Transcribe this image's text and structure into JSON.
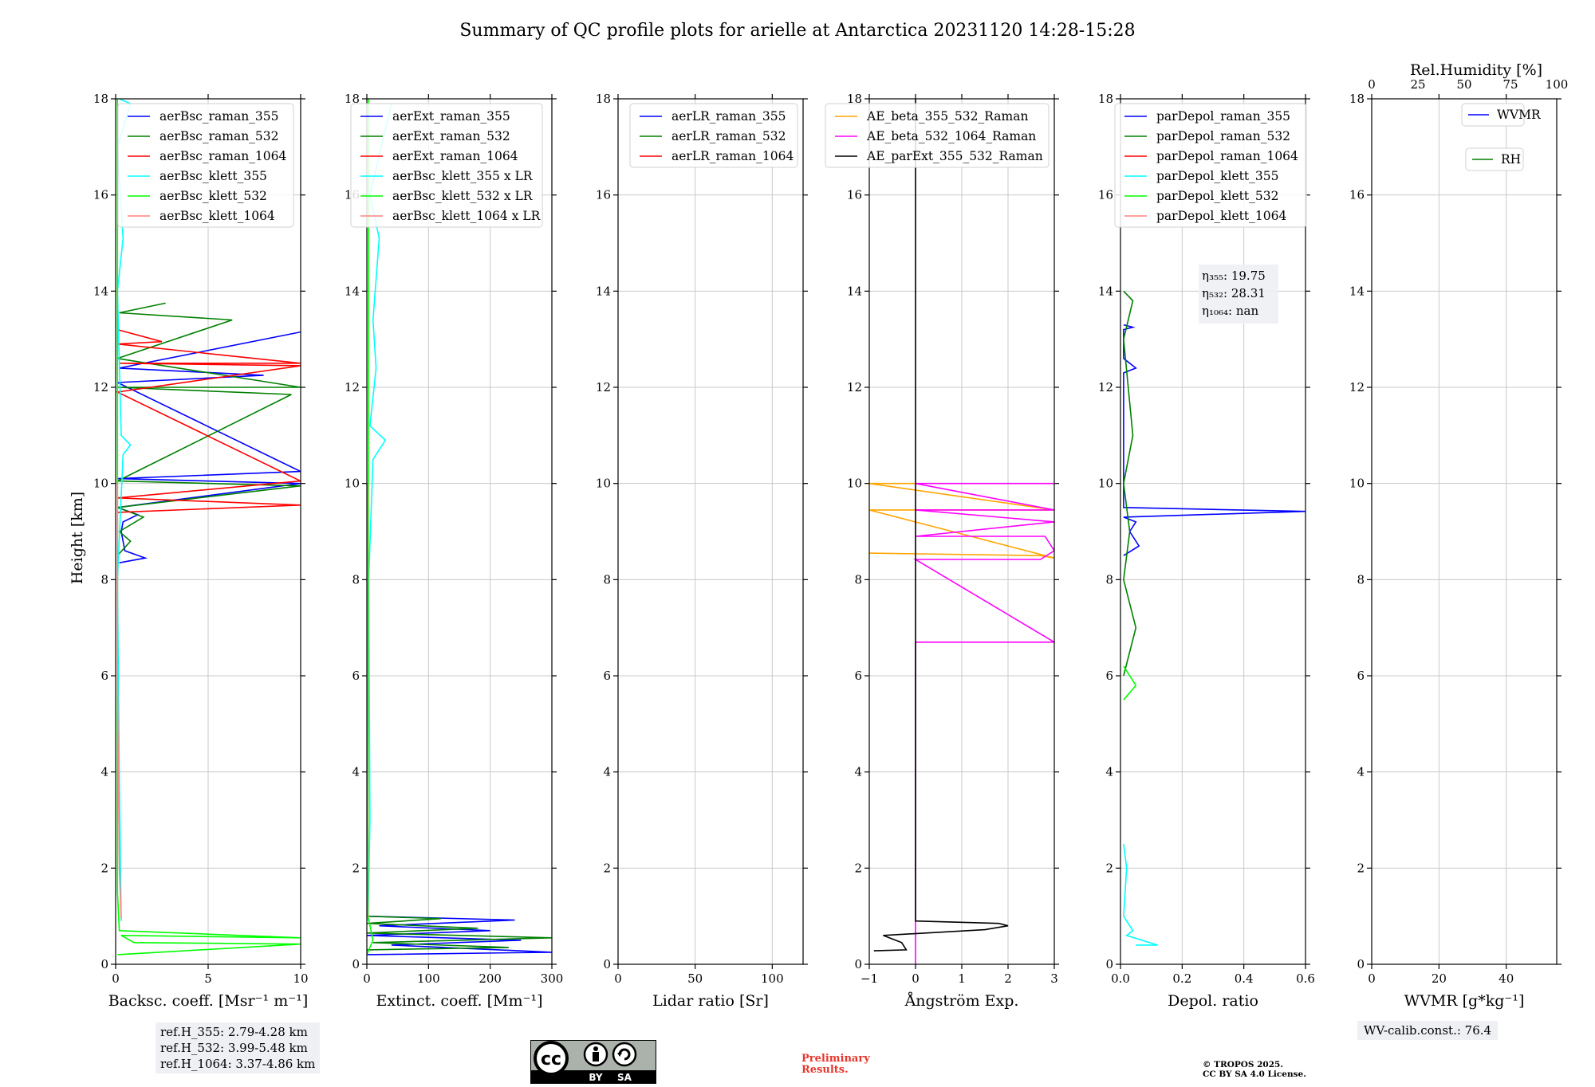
{
  "title": "Summary of QC profile plots for arielle at Antarctica 20231120 14:28-15:28",
  "ylabel": "Height [km]",
  "colors": {
    "raman_355": "#0000ff",
    "raman_532": "#008000",
    "raman_1064": "#ff0000",
    "klett_355": "#00ffff",
    "klett_532": "#00ff00",
    "klett_1064": "#ff8080",
    "ae_1": "#ffa500",
    "ae_2": "#ff00ff",
    "ae_3": "#000000",
    "wvmr": "#0000ff",
    "rh": "#008000"
  },
  "chart_data": [
    {
      "type": "line",
      "name": "backscatter",
      "xlabel": "Backsc. coeff. [Msr⁻¹ m⁻¹]",
      "xlim": [
        0,
        10
      ],
      "ylim": [
        0,
        18
      ],
      "xticks": [
        "0",
        "5",
        "10"
      ],
      "yticks": [
        "0",
        "2",
        "4",
        "6",
        "8",
        "10",
        "12",
        "14",
        "16",
        "18"
      ],
      "legend_position": "top-right",
      "series": [
        {
          "name": "aerBsc_raman_355",
          "color_key": "raman_355",
          "points": [
            [
              0.2,
              8.35
            ],
            [
              1.6,
              8.45
            ],
            [
              0.5,
              8.6
            ],
            [
              0.3,
              9.0
            ],
            [
              0.4,
              9.2
            ],
            [
              1.2,
              9.35
            ],
            [
              0.1,
              9.5
            ],
            [
              10,
              10.0
            ],
            [
              0.1,
              10.1
            ],
            [
              10,
              10.25
            ],
            [
              0.1,
              12.1
            ],
            [
              8.0,
              12.25
            ],
            [
              0.2,
              12.4
            ],
            [
              10,
              13.15
            ]
          ]
        },
        {
          "name": "aerBsc_raman_532",
          "color_key": "raman_532",
          "points": [
            [
              0.1,
              8.5
            ],
            [
              0.8,
              8.8
            ],
            [
              0.2,
              9.0
            ],
            [
              1.5,
              9.3
            ],
            [
              0.1,
              9.5
            ],
            [
              10,
              9.95
            ],
            [
              0.1,
              10.05
            ],
            [
              9.5,
              11.85
            ],
            [
              0.1,
              12.0
            ],
            [
              10,
              12.0
            ],
            [
              0.1,
              12.6
            ],
            [
              6.3,
              13.4
            ],
            [
              0.2,
              13.55
            ],
            [
              2.7,
              13.75
            ]
          ]
        },
        {
          "name": "aerBsc_raman_1064",
          "color_key": "raman_1064",
          "points": [
            [
              0.1,
              9.4
            ],
            [
              10,
              9.55
            ],
            [
              0.1,
              9.7
            ],
            [
              10,
              10.05
            ],
            [
              0.1,
              11.9
            ],
            [
              10,
              12.45
            ],
            [
              0.2,
              12.5
            ],
            [
              10,
              12.5
            ],
            [
              0.1,
              12.9
            ],
            [
              2.5,
              12.95
            ],
            [
              0.1,
              13.2
            ]
          ]
        },
        {
          "name": "aerBsc_klett_355",
          "color_key": "klett_355",
          "points": [
            [
              0.3,
              0.9
            ],
            [
              0.2,
              4.0
            ],
            [
              0.1,
              8.0
            ],
            [
              0.4,
              10.6
            ],
            [
              0.8,
              10.8
            ],
            [
              0.3,
              11.0
            ],
            [
              0.1,
              14.0
            ],
            [
              0.4,
              15.1
            ],
            [
              0.1,
              17.0
            ],
            [
              0.8,
              17.9
            ],
            [
              0.2,
              18.0
            ]
          ]
        },
        {
          "name": "aerBsc_klett_532",
          "color_key": "klett_532",
          "points": [
            [
              0.1,
              0.2
            ],
            [
              10,
              0.42
            ],
            [
              1.0,
              0.45
            ],
            [
              0.3,
              0.6
            ],
            [
              10,
              0.55
            ],
            [
              0.2,
              0.7
            ],
            [
              0.1,
              1.5
            ],
            [
              0.1,
              18.0
            ]
          ]
        },
        {
          "name": "aerBsc_klett_1064",
          "color_key": "klett_1064",
          "points": [
            [
              0.3,
              0.95
            ],
            [
              0.2,
              2.0
            ],
            [
              0.1,
              6.0
            ],
            [
              0.1,
              10.0
            ]
          ]
        }
      ]
    },
    {
      "type": "line",
      "name": "extinction",
      "xlabel": "Extinct. coeff. [Mm⁻¹]",
      "xlim": [
        0,
        300
      ],
      "ylim": [
        0,
        18
      ],
      "xticks": [
        "0",
        "100",
        "200",
        "300"
      ],
      "yticks": [
        "0",
        "2",
        "4",
        "6",
        "8",
        "10",
        "12",
        "14",
        "16",
        "18"
      ],
      "legend_position": "top-right",
      "series": [
        {
          "name": "aerExt_raman_355",
          "color_key": "raman_355",
          "points": [
            [
              0,
              0.2
            ],
            [
              300,
              0.25
            ],
            [
              40,
              0.4
            ],
            [
              250,
              0.5
            ],
            [
              0,
              0.6
            ],
            [
              200,
              0.7
            ],
            [
              20,
              0.8
            ],
            [
              240,
              0.92
            ],
            [
              0,
              1.0
            ]
          ]
        },
        {
          "name": "aerExt_raman_532",
          "color_key": "raman_532",
          "points": [
            [
              0,
              0.3
            ],
            [
              230,
              0.35
            ],
            [
              10,
              0.45
            ],
            [
              300,
              0.55
            ],
            [
              0,
              0.65
            ],
            [
              180,
              0.75
            ],
            [
              0,
              0.85
            ],
            [
              120,
              0.95
            ],
            [
              0,
              1.0
            ]
          ]
        },
        {
          "name": "aerExt_raman_1064",
          "color_key": "raman_1064",
          "points": []
        },
        {
          "name": "aerBsc_klett_355 x LR",
          "color_key": "klett_355",
          "points": [
            [
              2,
              0.9
            ],
            [
              5,
              3.0
            ],
            [
              3,
              8.0
            ],
            [
              10,
              10.5
            ],
            [
              30,
              10.9
            ],
            [
              5,
              11.2
            ],
            [
              15,
              12.4
            ],
            [
              10,
              13.4
            ],
            [
              20,
              15.1
            ],
            [
              5,
              16.0
            ],
            [
              40,
              17.9
            ]
          ]
        },
        {
          "name": "aerBsc_klett_532 x LR",
          "color_key": "klett_532",
          "points": [
            [
              0,
              0.2
            ],
            [
              10,
              0.5
            ],
            [
              2,
              1.0
            ],
            [
              3,
              18.0
            ]
          ]
        },
        {
          "name": "aerBsc_klett_1064 x LR",
          "color_key": "klett_1064",
          "points": [
            [
              1,
              0.95
            ],
            [
              1,
              10.0
            ]
          ]
        }
      ]
    },
    {
      "type": "line",
      "name": "lidar_ratio",
      "xlabel": "Lidar ratio [Sr]",
      "xlim": [
        0,
        120
      ],
      "ylim": [
        0,
        18
      ],
      "xticks": [
        "0",
        "50",
        "100"
      ],
      "yticks": [
        "0",
        "2",
        "4",
        "6",
        "8",
        "10",
        "12",
        "14",
        "16",
        "18"
      ],
      "legend_position": "top-right",
      "series": [
        {
          "name": "aerLR_raman_355",
          "color_key": "raman_355",
          "points": []
        },
        {
          "name": "aerLR_raman_532",
          "color_key": "raman_532",
          "points": []
        },
        {
          "name": "aerLR_raman_1064",
          "color_key": "raman_1064",
          "points": []
        }
      ]
    },
    {
      "type": "line",
      "name": "angstrom",
      "xlabel": "Ångström Exp.",
      "xlim": [
        -1,
        3
      ],
      "ylim": [
        0,
        18
      ],
      "xticks": [
        "−1",
        "0",
        "1",
        "2",
        "3"
      ],
      "yticks": [
        "0",
        "2",
        "4",
        "6",
        "8",
        "10",
        "12",
        "14",
        "16",
        "18"
      ],
      "legend_position": "top-left",
      "series": [
        {
          "name": "AE_beta_355_532_Raman",
          "color_key": "ae_1",
          "points": [
            [
              -1,
              8.55
            ],
            [
              2.7,
              8.5
            ],
            [
              3,
              8.45
            ],
            [
              -1,
              9.45
            ],
            [
              3,
              9.45
            ],
            [
              -1,
              10.0
            ],
            [
              0,
              10.0
            ]
          ]
        },
        {
          "name": "AE_beta_532_1064_Raman",
          "color_key": "ae_2",
          "points": [
            [
              0,
              0.0
            ],
            [
              0,
              6.7
            ],
            [
              3,
              6.7
            ],
            [
              0,
              8.42
            ],
            [
              2.7,
              8.42
            ],
            [
              3,
              8.6
            ],
            [
              2.8,
              8.9
            ],
            [
              0,
              8.9
            ],
            [
              3,
              9.2
            ],
            [
              0,
              9.45
            ],
            [
              3,
              9.45
            ],
            [
              0,
              10.0
            ],
            [
              3,
              10.0
            ]
          ]
        },
        {
          "name": "AE_parExt_355_532_Raman",
          "color_key": "ae_3",
          "points": [
            [
              -0.9,
              0.28
            ],
            [
              -0.2,
              0.3
            ],
            [
              -0.3,
              0.45
            ],
            [
              -0.7,
              0.6
            ],
            [
              1.5,
              0.72
            ],
            [
              2.0,
              0.8
            ],
            [
              1.8,
              0.85
            ],
            [
              0,
              0.9
            ],
            [
              0,
              18.0
            ]
          ]
        }
      ]
    },
    {
      "type": "line",
      "name": "depolarization",
      "xlabel": "Depol. ratio",
      "xlim": [
        0.0,
        0.6
      ],
      "ylim": [
        0,
        18
      ],
      "xticks": [
        "0.0",
        "0.2",
        "0.4",
        "0.6"
      ],
      "yticks": [
        "0",
        "2",
        "4",
        "6",
        "8",
        "10",
        "12",
        "14",
        "16",
        "18"
      ],
      "legend_position": "top-left",
      "annotation": [
        "η₃₅₅: 19.75",
        "η₅₃₂: 28.31",
        "η₁₀₆₄: nan"
      ],
      "series": [
        {
          "name": "parDepol_raman_355",
          "color_key": "raman_355",
          "points": [
            [
              0.01,
              8.5
            ],
            [
              0.06,
              8.7
            ],
            [
              0.03,
              9.0
            ],
            [
              0.05,
              9.2
            ],
            [
              0.01,
              9.3
            ],
            [
              0.6,
              9.42
            ],
            [
              0.01,
              9.5
            ],
            [
              0.01,
              12.3
            ],
            [
              0.05,
              12.4
            ],
            [
              0.01,
              12.6
            ],
            [
              0.01,
              13.2
            ],
            [
              0.04,
              13.25
            ],
            [
              0.01,
              13.3
            ]
          ]
        },
        {
          "name": "parDepol_raman_532",
          "color_key": "raman_532",
          "points": [
            [
              0.01,
              6.0
            ],
            [
              0.05,
              7.0
            ],
            [
              0.01,
              8.0
            ],
            [
              0.03,
              9.0
            ],
            [
              0.01,
              10.0
            ],
            [
              0.04,
              11.0
            ],
            [
              0.01,
              13.0
            ],
            [
              0.04,
              13.8
            ],
            [
              0.01,
              14.0
            ]
          ]
        },
        {
          "name": "parDepol_raman_1064",
          "color_key": "raman_1064",
          "points": []
        },
        {
          "name": "parDepol_klett_355",
          "color_key": "klett_355",
          "points": [
            [
              0.05,
              0.4
            ],
            [
              0.12,
              0.4
            ],
            [
              0.02,
              0.6
            ],
            [
              0.04,
              0.7
            ],
            [
              0.01,
              1.0
            ],
            [
              0.02,
              2.0
            ],
            [
              0.01,
              2.5
            ]
          ]
        },
        {
          "name": "parDepol_klett_532",
          "color_key": "klett_532",
          "points": [
            [
              0.01,
              5.5
            ],
            [
              0.05,
              5.8
            ],
            [
              0.01,
              6.2
            ]
          ]
        },
        {
          "name": "parDepol_klett_1064",
          "color_key": "klett_1064",
          "points": []
        }
      ]
    },
    {
      "type": "line",
      "name": "water_vapor",
      "xlabel": "WVMR [g*kg⁻¹]",
      "xlim": [
        0,
        55
      ],
      "ylim": [
        0,
        18
      ],
      "xticks": [
        "0",
        "20",
        "40"
      ],
      "yticks": [
        "0",
        "2",
        "4",
        "6",
        "8",
        "10",
        "12",
        "14",
        "16",
        "18"
      ],
      "top_xlabel": "Rel.Humidity [%]",
      "top_xlim": [
        0,
        100
      ],
      "top_xticks": [
        "0",
        "25",
        "50",
        "75",
        "100"
      ],
      "series": [
        {
          "name": "WVMR",
          "color_key": "wvmr",
          "points": []
        },
        {
          "name": "RH",
          "color_key": "rh",
          "points": []
        }
      ]
    }
  ],
  "ref_heights": [
    "ref.H_355: 2.79-4.28 km",
    "ref.H_532: 3.99-5.48 km",
    "ref.H_1064: 3.37-4.86 km"
  ],
  "wv_calib": "WV-calib.const.: 76.4",
  "preliminary": [
    "Preliminary",
    "Results."
  ],
  "copyright": [
    "© TROPOS 2025.",
    "CC BY SA 4.0 License."
  ],
  "license_badge": {
    "cc": "cc",
    "by": "BY",
    "sa": "SA"
  }
}
